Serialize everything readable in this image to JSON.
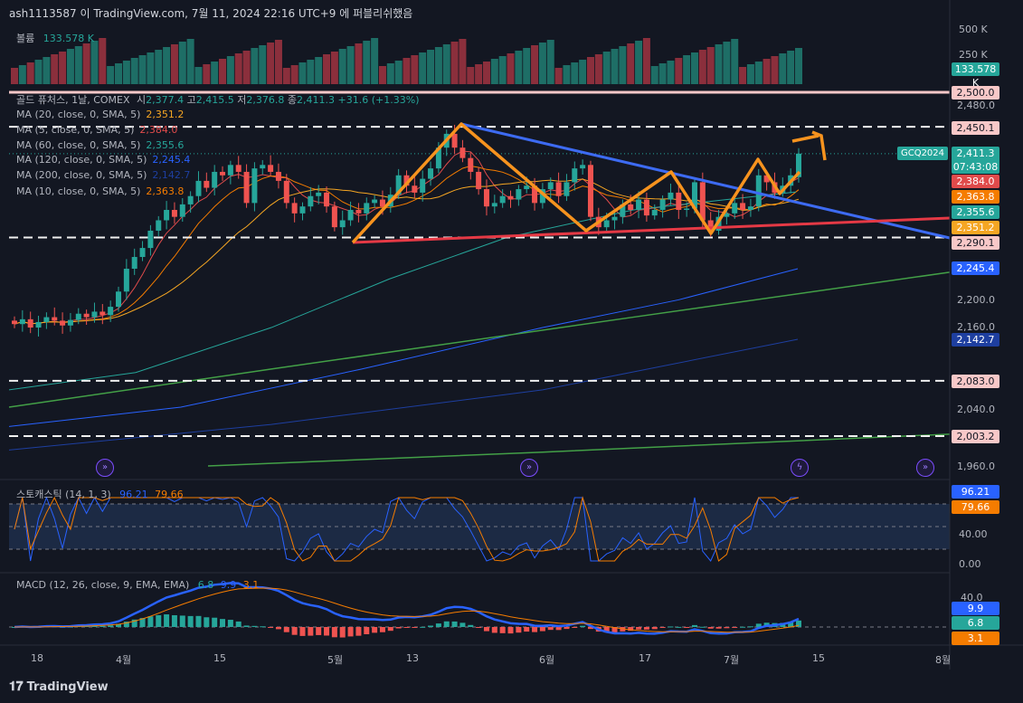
{
  "header": {
    "text": "ash1113587 이 TradingView.com, 7월 11, 2024 22:16 UTC+9 에 퍼블리쉬했음"
  },
  "volume_legend": {
    "label": "볼륨",
    "value": "133.578 K"
  },
  "legend": {
    "title": "골드 퓨처스, 1날, COMEX",
    "ohlc": [
      {
        "label": "시",
        "value": "2,377.4"
      },
      {
        "label": "고",
        "value": "2,415.5"
      },
      {
        "label": "저",
        "value": "2,376.8"
      },
      {
        "label": "종",
        "value": "2,411.3"
      }
    ],
    "change": "+31.6 (+1.33%)",
    "mas": [
      {
        "label": "MA (20, close, 0, SMA, 5)",
        "value": "2,351.2",
        "color": "#f5a623"
      },
      {
        "label": "MA (5, close, 0, SMA, 5)",
        "value": "2,384.0",
        "color": "#e04b4b"
      },
      {
        "label": "MA (60, close, 0, SMA, 5)",
        "value": "2,355.6",
        "color": "#26a69a"
      },
      {
        "label": "MA (120, close, 0, SMA, 5)",
        "value": "2,245.4",
        "color": "#2962ff"
      },
      {
        "label": "MA (200, close, 0, SMA, 5)",
        "value": "2,142.7",
        "color": "#1e3fa0"
      },
      {
        "label": "MA (10, close, 0, SMA, 5)",
        "value": "2,363.8",
        "color": "#f57c00"
      }
    ]
  },
  "stoch_legend": {
    "label": "스토캐스틱 (14, 1, 3)",
    "k": "96.21",
    "d": "79.66"
  },
  "macd_legend": {
    "label": "MACD (12, 26, close, 9, EMA, EMA)",
    "hist": "6.8",
    "macd": "9.9",
    "signal": "3.1"
  },
  "right_axis": {
    "volume_ticks": [
      "500 K",
      "250 K"
    ],
    "price_ticks": [
      "2,480.0",
      "2,200.0",
      "2,160.0",
      "2,040.0",
      "1,960.0"
    ],
    "stoch_ticks": [
      "40.00",
      "0.00"
    ],
    "macd_ticks": [
      "40.0"
    ]
  },
  "tags": [
    {
      "text": "133.578 K",
      "bg": "#26a69a"
    },
    {
      "text": "2,500.0",
      "bg": "#f8c8c8"
    },
    {
      "text": "2,450.1",
      "bg": "#f8c8c8"
    },
    {
      "text": "2,384.0",
      "bg": "#e04b4b"
    },
    {
      "text": "2,363.8",
      "bg": "#f57c00"
    },
    {
      "text": "2,355.6",
      "bg": "#26a69a"
    },
    {
      "text": "2,351.2",
      "bg": "#f5a623"
    },
    {
      "text": "2,290.1",
      "bg": "#f8c8c8"
    },
    {
      "text": "2,245.4",
      "bg": "#2962ff"
    },
    {
      "text": "2,142.7",
      "bg": "#1e3fa0"
    },
    {
      "text": "2,083.0",
      "bg": "#f8c8c8"
    },
    {
      "text": "2,003.2",
      "bg": "#f8c8c8"
    },
    {
      "text": "96.21",
      "bg": "#2962ff"
    },
    {
      "text": "79.66",
      "bg": "#f57c00"
    },
    {
      "text": "9.9",
      "bg": "#2962ff"
    },
    {
      "text": "6.8",
      "bg": "#26a69a"
    },
    {
      "text": "3.1",
      "bg": "#f57c00"
    }
  ],
  "symbol": {
    "name": "GCQ2024",
    "price": "2,411.3",
    "countdown": "07:43:08"
  },
  "x_labels": [
    "18",
    "4월",
    "15",
    "5월",
    "13",
    "6월",
    "17",
    "7월",
    "15",
    "8월"
  ],
  "brand": "TradingView",
  "chart_data": {
    "type": "candlestick",
    "instrument": "골드 퓨처스, 1날, COMEX",
    "ylim": [
      1940,
      2520
    ],
    "horizontal_levels": [
      2500.0,
      2450.1,
      2290.1,
      2083.0,
      2003.2
    ],
    "closes": [
      2165,
      2172,
      2160,
      2168,
      2175,
      2170,
      2163,
      2171,
      2180,
      2175,
      2183,
      2178,
      2190,
      2212,
      2245,
      2262,
      2275,
      2300,
      2315,
      2330,
      2320,
      2338,
      2350,
      2372,
      2362,
      2385,
      2380,
      2395,
      2385,
      2340,
      2390,
      2395,
      2385,
      2372,
      2340,
      2325,
      2335,
      2350,
      2355,
      2335,
      2305,
      2315,
      2330,
      2325,
      2340,
      2345,
      2335,
      2352,
      2380,
      2365,
      2355,
      2375,
      2390,
      2420,
      2440,
      2420,
      2405,
      2385,
      2360,
      2335,
      2340,
      2350,
      2345,
      2360,
      2365,
      2340,
      2360,
      2370,
      2350,
      2370,
      2390,
      2395,
      2320,
      2305,
      2315,
      2320,
      2338,
      2330,
      2345,
      2322,
      2330,
      2345,
      2355,
      2330,
      2332,
      2370,
      2315,
      2300,
      2320,
      2325,
      2340,
      2330,
      2335,
      2380,
      2370,
      2355,
      2365,
      2380,
      2411.3
    ],
    "opens": [
      2170,
      2165,
      2172,
      2160,
      2168,
      2175,
      2170,
      2163,
      2171,
      2180,
      2175,
      2183,
      2178,
      2190,
      2212,
      2245,
      2262,
      2275,
      2300,
      2315,
      2330,
      2320,
      2338,
      2350,
      2372,
      2362,
      2385,
      2380,
      2395,
      2385,
      2340,
      2390,
      2395,
      2385,
      2372,
      2340,
      2325,
      2335,
      2350,
      2355,
      2335,
      2305,
      2315,
      2330,
      2325,
      2340,
      2345,
      2335,
      2352,
      2380,
      2365,
      2355,
      2375,
      2390,
      2420,
      2440,
      2420,
      2405,
      2385,
      2360,
      2335,
      2340,
      2350,
      2345,
      2360,
      2365,
      2340,
      2360,
      2370,
      2350,
      2370,
      2390,
      2395,
      2320,
      2305,
      2315,
      2320,
      2338,
      2330,
      2345,
      2322,
      2330,
      2345,
      2355,
      2330,
      2332,
      2370,
      2315,
      2300,
      2320,
      2325,
      2340,
      2330,
      2335,
      2380,
      2370,
      2355,
      2365,
      2377.4
    ],
    "series": [
      {
        "name": "MA (5, close, 0, SMA, 5)",
        "last": 2384.0
      },
      {
        "name": "MA (10, close, 0, SMA, 5)",
        "last": 2363.8
      },
      {
        "name": "MA (20, close, 0, SMA, 5)",
        "last": 2351.2
      },
      {
        "name": "MA (60, close, 0, SMA, 5)",
        "last": 2355.6
      },
      {
        "name": "MA (120, close, 0, SMA, 5)",
        "last": 2245.4
      },
      {
        "name": "MA (200, close, 0, SMA, 5)",
        "last": 2142.7
      }
    ],
    "volume_last": "133.578 K",
    "stochastic": {
      "k": 96.21,
      "d": 79.66,
      "ylim": [
        0,
        100
      ]
    },
    "macd": {
      "macd": 9.9,
      "signal": 3.1,
      "histogram": 6.8
    }
  }
}
